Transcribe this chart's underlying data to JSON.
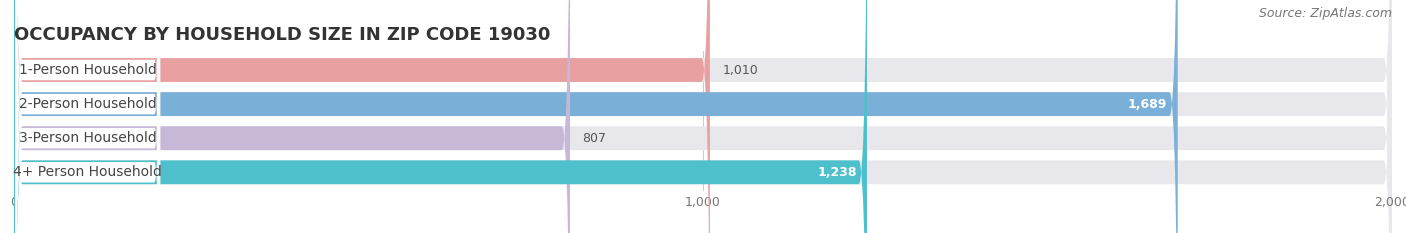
{
  "title": "OCCUPANCY BY HOUSEHOLD SIZE IN ZIP CODE 19030",
  "source": "Source: ZipAtlas.com",
  "categories": [
    "1-Person Household",
    "2-Person Household",
    "3-Person Household",
    "4+ Person Household"
  ],
  "values": [
    1010,
    1689,
    807,
    1238
  ],
  "bar_colors": [
    "#e8a0a0",
    "#7ab0d8",
    "#c8b8d8",
    "#4ec0cc"
  ],
  "xlim": [
    0,
    2000
  ],
  "xticks": [
    0,
    1000,
    2000
  ],
  "background_color": "#ffffff",
  "bar_bg_color": "#e8e8ec",
  "title_fontsize": 13,
  "source_fontsize": 9,
  "label_fontsize": 10,
  "value_fontsize": 9,
  "tick_fontsize": 9
}
